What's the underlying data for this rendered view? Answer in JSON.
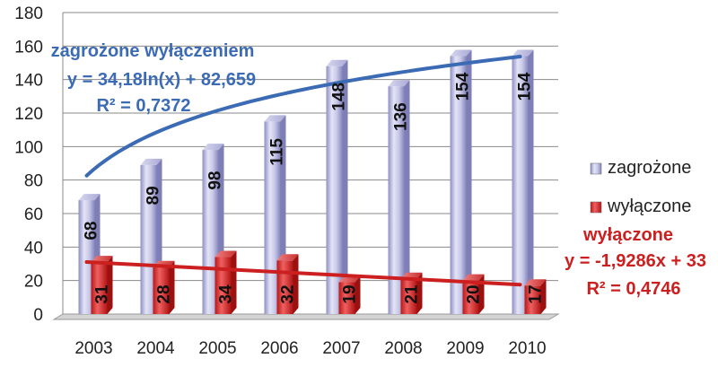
{
  "chart_data": {
    "type": "bar",
    "categories": [
      "2003",
      "2004",
      "2005",
      "2006",
      "2007",
      "2008",
      "2009",
      "2010"
    ],
    "series": [
      {
        "name": "zagrożone",
        "values": [
          68,
          89,
          98,
          115,
          148,
          136,
          154,
          154
        ],
        "color": "#b4b4dc"
      },
      {
        "name": "wyłączone",
        "values": [
          31,
          28,
          34,
          32,
          19,
          21,
          20,
          17
        ],
        "color": "#d42a2a"
      }
    ],
    "yticks": [
      "0",
      "20",
      "40",
      "60",
      "80",
      "100",
      "120",
      "140",
      "160",
      "180"
    ],
    "ylim": [
      0,
      180
    ],
    "grid": true,
    "legend_position": "right",
    "trendlines": [
      {
        "series": "zagrożone",
        "kind": "logarithmic",
        "a": 34.18,
        "b": 82.659,
        "color": "#3b6bb5"
      },
      {
        "series": "wyłączone",
        "kind": "linear",
        "a": -1.9286,
        "b": 33,
        "color": "#cc2020"
      }
    ],
    "annotations": {
      "blue": [
        "zagrożone wyłączeniem",
        "y = 34,18ln(x) + 82,659",
        "R² = 0,7372"
      ],
      "red": [
        "wyłączone",
        "y = -1,9286x + 33",
        "R² = 0,4746"
      ]
    }
  }
}
